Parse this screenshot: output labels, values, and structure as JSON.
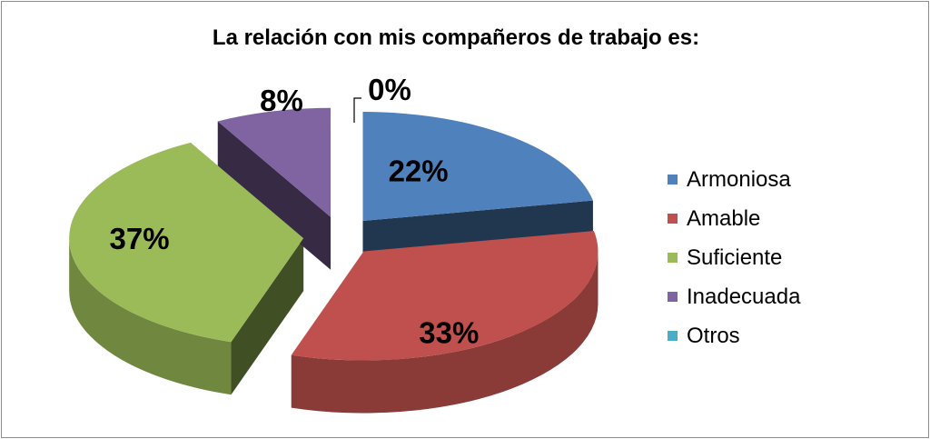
{
  "chart_data": {
    "type": "pie",
    "title": "La relación con mis compañeros de trabajo es:",
    "categories": [
      "Armoniosa",
      "Amable",
      "Suficiente",
      "Inadecuada",
      "Otros"
    ],
    "values": [
      22,
      33,
      37,
      8,
      0
    ],
    "labels": [
      "22%",
      "33%",
      "37%",
      "8%",
      "0%"
    ],
    "colors": [
      "#4f81bd",
      "#c0504d",
      "#9bbb59",
      "#8064a2",
      "#4bacc6"
    ],
    "exploded": true,
    "three_d": true,
    "legend": {
      "position": "right"
    }
  }
}
